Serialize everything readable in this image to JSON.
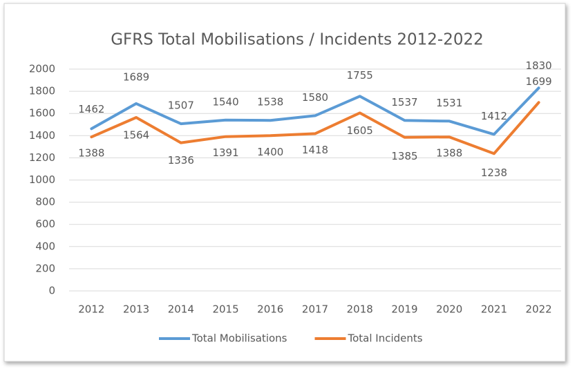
{
  "chart_data": {
    "type": "line",
    "title": "GFRS Total Mobilisations / Incidents 2012-2022",
    "categories": [
      "2012",
      "2013",
      "2014",
      "2015",
      "2016",
      "2017",
      "2018",
      "2019",
      "2020",
      "2021",
      "2022"
    ],
    "series": [
      {
        "name": "Total Mobilisations",
        "color": "#5b9bd5",
        "values": [
          1462,
          1689,
          1507,
          1540,
          1538,
          1580,
          1755,
          1537,
          1531,
          1412,
          1830
        ]
      },
      {
        "name": "Total Incidents",
        "color": "#ed7d31",
        "values": [
          1388,
          1564,
          1336,
          1391,
          1400,
          1418,
          1605,
          1385,
          1388,
          1238,
          1699
        ]
      }
    ],
    "ylim": [
      0,
      2000
    ],
    "yticks": [
      0,
      200,
      400,
      600,
      800,
      1000,
      1200,
      1400,
      1600,
      1800,
      2000
    ],
    "grid": true,
    "legend": "bottom"
  }
}
